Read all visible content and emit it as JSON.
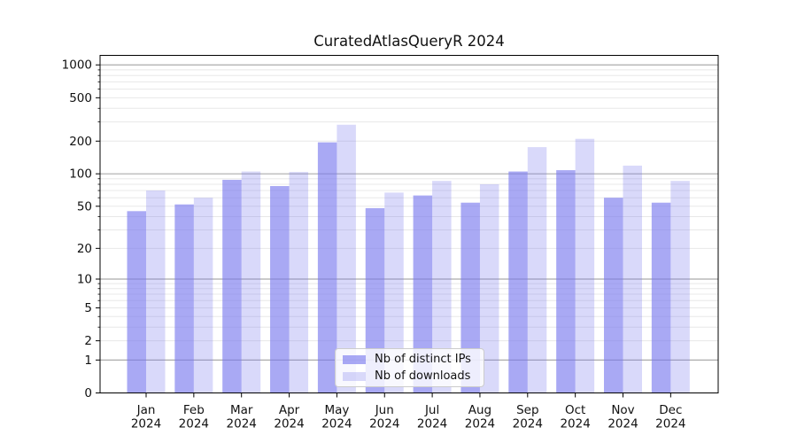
{
  "chart_data": {
    "type": "bar",
    "title": "CuratedAtlasQueryR 2024",
    "categories": [
      "Jan",
      "Feb",
      "Mar",
      "Apr",
      "May",
      "Jun",
      "Jul",
      "Aug",
      "Sep",
      "Oct",
      "Nov",
      "Dec"
    ],
    "category_year_label": "2024",
    "series": [
      {
        "name": "Nb of distinct IPs",
        "color": "rgba(119,119,238,0.63)",
        "values": [
          45,
          52,
          88,
          77,
          195,
          48,
          63,
          54,
          105,
          108,
          60,
          54
        ]
      },
      {
        "name": "Nb of downloads",
        "color": "rgba(119,119,238,0.28)",
        "values": [
          70,
          60,
          105,
          104,
          283,
          67,
          86,
          80,
          176,
          210,
          119,
          86
        ]
      }
    ],
    "xlabel": "",
    "ylabel": "",
    "yscale": "log1p (position proportional to log10(1+v))",
    "ylim": [
      0,
      1220
    ],
    "ytick_labels": [
      0,
      1,
      2,
      5,
      10,
      20,
      50,
      100,
      200,
      500,
      1000
    ],
    "grid": {
      "major_values": [
        1,
        10,
        100,
        1000
      ],
      "minor_values": [
        2,
        3,
        4,
        5,
        6,
        7,
        8,
        9,
        20,
        30,
        40,
        50,
        60,
        70,
        80,
        90,
        200,
        300,
        400,
        500,
        600,
        700,
        800,
        900
      ],
      "unlabeled_minor_ticks": [
        3,
        4,
        6,
        7,
        8,
        9,
        30,
        40,
        60,
        70,
        80,
        90,
        300,
        400,
        600,
        700,
        800,
        900
      ],
      "major_color": "#ababab",
      "minor_color": "#e8e8e8"
    },
    "legend_position": "lower center",
    "axis_color": "#000000",
    "text_color": "#111111",
    "background_color": "#ffffff"
  }
}
